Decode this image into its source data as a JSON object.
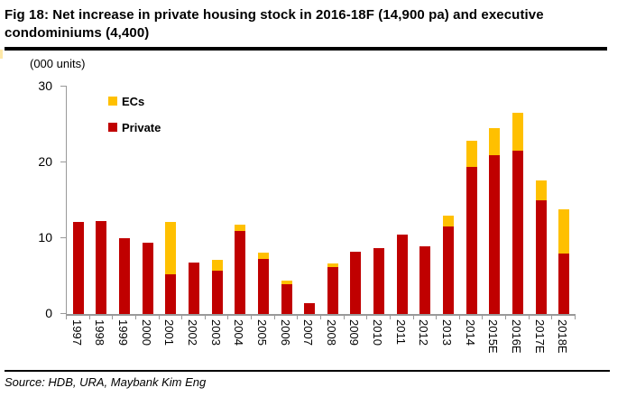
{
  "figure": {
    "title": "Fig 18: Net increase in private housing stock in 2016-18F (14,900 pa) and executive condominiums (4,400)",
    "units_label": "(000 units)",
    "source": "Source: HDB, URA, Maybank Kim Eng"
  },
  "legend": {
    "items": [
      {
        "label": "ECs",
        "color": "#FFC000"
      },
      {
        "label": "Private",
        "color": "#C00000"
      }
    ]
  },
  "colors": {
    "bar_private": "#C00000",
    "bar_ecs": "#FFC000",
    "axis": "#999999",
    "rule": "#000000"
  },
  "chart_data": {
    "type": "bar",
    "stacked": true,
    "title": "Fig 18: Net increase in private housing stock in 2016-18F (14,900 pa) and executive condominiums (4,400)",
    "ylabel": "(000 units)",
    "xlabel": "",
    "categories": [
      "1997",
      "1998",
      "1999",
      "2000",
      "2001",
      "2002",
      "2003",
      "2004",
      "2005",
      "2006",
      "2007",
      "2008",
      "2009",
      "2010",
      "2011",
      "2012",
      "2013",
      "2014",
      "2015E",
      "2016E",
      "2017E",
      "2018E"
    ],
    "series": [
      {
        "name": "Private",
        "color": "#C00000",
        "values": [
          12.1,
          12.3,
          10.0,
          9.4,
          5.2,
          6.8,
          5.7,
          10.9,
          7.3,
          3.9,
          1.4,
          6.2,
          8.2,
          8.7,
          10.5,
          8.9,
          11.6,
          19.4,
          21.0,
          21.5,
          15.0,
          8.0
        ]
      },
      {
        "name": "ECs",
        "color": "#FFC000",
        "values": [
          0,
          0,
          0,
          0,
          6.9,
          0,
          1.4,
          0.9,
          0.8,
          0.5,
          0,
          0.5,
          0,
          0,
          0,
          0,
          1.4,
          3.5,
          3.5,
          5.0,
          2.6,
          5.8
        ]
      }
    ],
    "ylim": [
      0,
      30
    ],
    "yticks": [
      0,
      10,
      20,
      30
    ],
    "grid": false,
    "legend_position": "inside-top-left",
    "x_label_rotation_deg": 90
  }
}
